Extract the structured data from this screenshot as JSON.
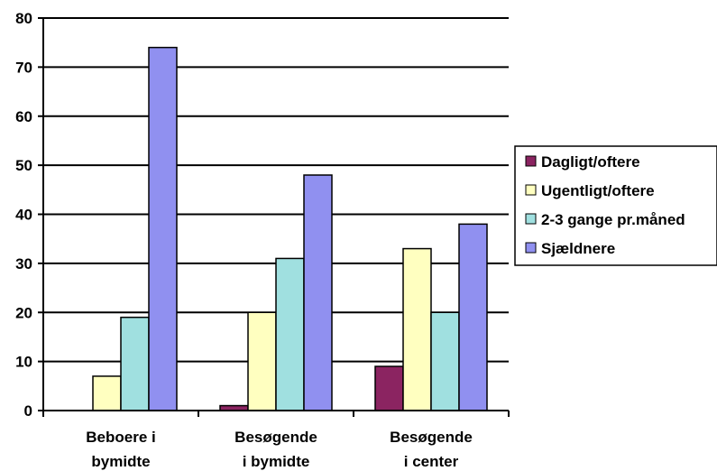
{
  "chart_data": {
    "type": "bar",
    "categories": [
      [
        "Beboere i",
        "bymidte"
      ],
      [
        "Besøgende",
        "i bymidte"
      ],
      [
        "Besøgende",
        "i center"
      ]
    ],
    "series": [
      {
        "name": "Dagligt/oftere",
        "color": "#8b2461",
        "values": [
          0,
          1,
          9
        ]
      },
      {
        "name": "Ugentligt/oftere",
        "color": "#ffffc0",
        "values": [
          7,
          20,
          33
        ]
      },
      {
        "name": "2-3 gange pr.måned",
        "color": "#a0e0e0",
        "values": [
          19,
          31,
          20
        ]
      },
      {
        "name": "Sjældnere",
        "color": "#9090f0",
        "values": [
          74,
          48,
          38
        ]
      }
    ],
    "ylim": [
      0,
      80
    ],
    "yticks": [
      "0",
      "10",
      "20",
      "30",
      "40",
      "50",
      "60",
      "70",
      "80"
    ],
    "grid": true,
    "legend_position": "right"
  }
}
